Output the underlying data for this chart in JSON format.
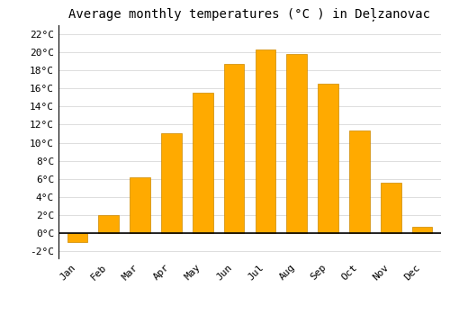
{
  "title": "Average monthly temperatures (°C ) in Deļzanovac",
  "months": [
    "Jan",
    "Feb",
    "Mar",
    "Apr",
    "May",
    "Jun",
    "Jul",
    "Aug",
    "Sep",
    "Oct",
    "Nov",
    "Dec"
  ],
  "values": [
    -1.0,
    2.0,
    6.2,
    11.0,
    15.5,
    18.7,
    20.3,
    19.8,
    16.5,
    11.3,
    5.6,
    0.7
  ],
  "bar_color": "#FFAA00",
  "bar_edge_color": "#CC8800",
  "background_color": "#FFFFFF",
  "grid_color": "#DDDDDD",
  "yticks": [
    -2,
    0,
    2,
    4,
    6,
    8,
    10,
    12,
    14,
    16,
    18,
    20,
    22
  ],
  "ylim": [
    -2.8,
    23.0
  ],
  "title_fontsize": 10,
  "tick_fontsize": 8,
  "font_family": "monospace",
  "bar_width": 0.65
}
